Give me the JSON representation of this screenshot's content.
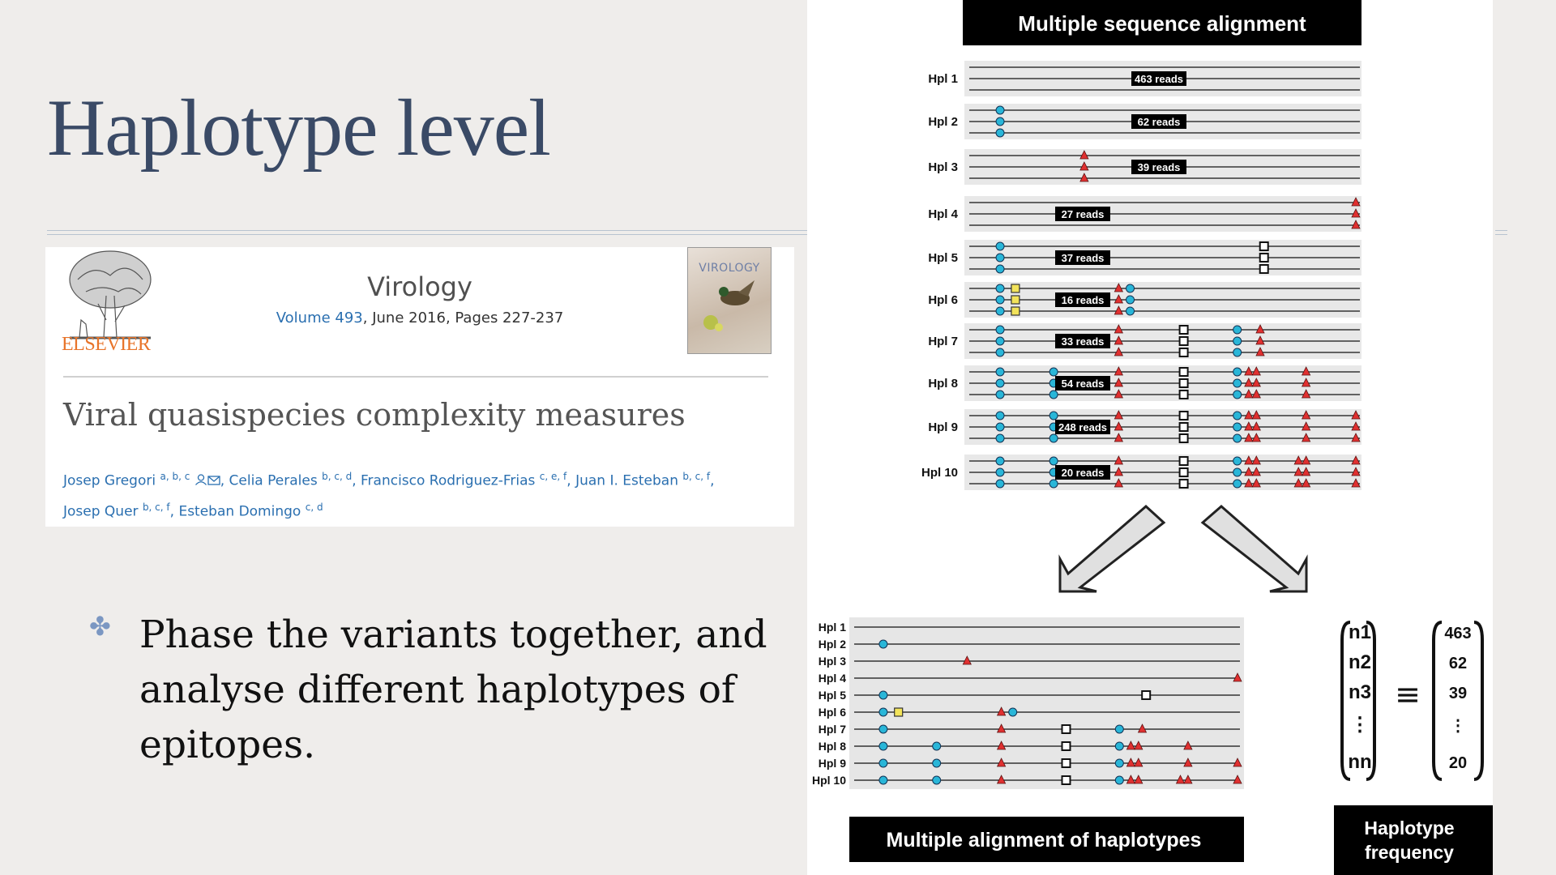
{
  "slide": {
    "title": "Haplotype level",
    "bullet": "Phase the variants together, and analyse different haplotypes of epitopes.",
    "bullet_icon": "flower-bullet-icon"
  },
  "paper": {
    "publisher": "ELSEVIER",
    "journal": "Virology",
    "volume_link": "Volume 493",
    "issue_info": ", June 2016, Pages 227-237",
    "cover_title": "VIROLOGY",
    "article_title": "Viral quasispecies complexity measures",
    "authors": [
      {
        "name": "Josep Gregori",
        "sup": "a, b, c"
      },
      {
        "name": "Celia Perales",
        "sup": "b, c, d"
      },
      {
        "name": "Francisco Rodriguez-Frias",
        "sup": "c, e, f"
      },
      {
        "name": "Juan I. Esteban",
        "sup": "b, c, f"
      },
      {
        "name": "Josep Quer",
        "sup": "b, c, f"
      },
      {
        "name": "Esteban Domingo",
        "sup": "c, d"
      }
    ],
    "colors": {
      "publisher": "#e8742a",
      "link": "#2a6fb0"
    }
  },
  "figure": {
    "msa_header": "Multiple sequence alignment",
    "alignment_header": "Multiple alignment of haplotypes",
    "frequency_header": "Haplotype frequency",
    "colors": {
      "circle": "#29b6d8",
      "triangle": "#e03030",
      "square_fill": "#f2e35a"
    },
    "haplotypes": [
      {
        "label": "Hpl 1",
        "reads": "463 reads",
        "count": "463",
        "markers": []
      },
      {
        "label": "Hpl 2",
        "reads": "62 reads",
        "count": "62",
        "markers": [
          [
            "c",
            0.07
          ]
        ]
      },
      {
        "label": "Hpl 3",
        "reads": "39 reads",
        "count": "39",
        "markers": [
          [
            "t",
            0.29
          ]
        ]
      },
      {
        "label": "Hpl 4",
        "reads": "27 reads",
        "count": "",
        "markers": [
          [
            "t",
            1.0
          ]
        ]
      },
      {
        "label": "Hpl 5",
        "reads": "37 reads",
        "count": "",
        "markers": [
          [
            "c",
            0.07
          ],
          [
            "s",
            0.76
          ]
        ]
      },
      {
        "label": "Hpl 6",
        "reads": "16 reads",
        "count": "",
        "markers": [
          [
            "c",
            0.07
          ],
          [
            "y",
            0.11
          ],
          [
            "t",
            0.38
          ],
          [
            "c",
            0.41
          ]
        ]
      },
      {
        "label": "Hpl 7",
        "reads": "33 reads",
        "count": "",
        "markers": [
          [
            "c",
            0.07
          ],
          [
            "t",
            0.38
          ],
          [
            "s",
            0.55
          ],
          [
            "c",
            0.69
          ],
          [
            "t",
            0.75
          ]
        ]
      },
      {
        "label": "Hpl 8",
        "reads": "54 reads",
        "count": "",
        "markers": [
          [
            "c",
            0.07
          ],
          [
            "c",
            0.21
          ],
          [
            "t",
            0.38
          ],
          [
            "s",
            0.55
          ],
          [
            "c",
            0.69
          ],
          [
            "t",
            0.72
          ],
          [
            "t",
            0.74
          ],
          [
            "t",
            0.87
          ]
        ]
      },
      {
        "label": "Hpl 9",
        "reads": "248 reads",
        "count": "",
        "markers": [
          [
            "c",
            0.07
          ],
          [
            "c",
            0.21
          ],
          [
            "t",
            0.38
          ],
          [
            "s",
            0.55
          ],
          [
            "c",
            0.69
          ],
          [
            "t",
            0.72
          ],
          [
            "t",
            0.74
          ],
          [
            "t",
            0.87
          ],
          [
            "t",
            1.0
          ]
        ]
      },
      {
        "label": "Hpl 10",
        "reads": "20 reads",
        "count": "20",
        "markers": [
          [
            "c",
            0.07
          ],
          [
            "c",
            0.21
          ],
          [
            "t",
            0.38
          ],
          [
            "s",
            0.55
          ],
          [
            "c",
            0.69
          ],
          [
            "t",
            0.72
          ],
          [
            "t",
            0.74
          ],
          [
            "t",
            0.85
          ],
          [
            "t",
            0.87
          ],
          [
            "t",
            1.0
          ]
        ]
      }
    ],
    "frequency_symbols": [
      "n1",
      "n2",
      "n3",
      "⋮",
      "nn"
    ],
    "frequency_values": [
      "463",
      "62",
      "39",
      "⋮",
      "20"
    ],
    "equiv_symbol": "≡"
  }
}
